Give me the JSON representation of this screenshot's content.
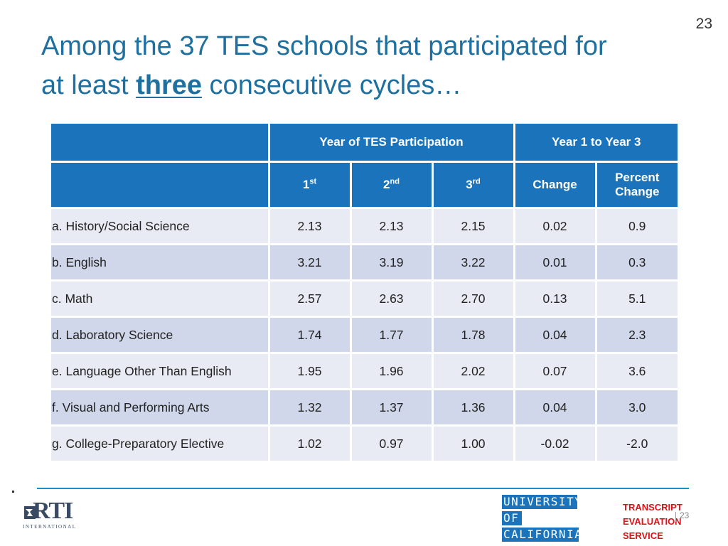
{
  "page_number": "23",
  "title": {
    "line1": "Among the 37 TES schools that participated for",
    "line2_pre": "at least ",
    "line2_emph": "three",
    "line2_post": " consecutive cycles…"
  },
  "table": {
    "group_headers": {
      "participation": "Year of TES Participation",
      "comparison": "Year 1 to Year 3"
    },
    "columns": [
      {
        "base": "1",
        "sup": "st"
      },
      {
        "base": "2",
        "sup": "nd"
      },
      {
        "base": "3",
        "sup": "rd"
      }
    ],
    "change_label": "Change",
    "percent_change_label_1": "Percent",
    "percent_change_label_2": "Change",
    "rows": [
      {
        "label": "a. History/Social Science",
        "y1": "2.13",
        "y2": "2.13",
        "y3": "2.15",
        "change": "0.02",
        "pct": "0.9"
      },
      {
        "label": "b. English",
        "y1": "3.21",
        "y2": "3.19",
        "y3": "3.22",
        "change": "0.01",
        "pct": "0.3"
      },
      {
        "label": "c. Math",
        "y1": "2.57",
        "y2": "2.63",
        "y3": "2.70",
        "change": "0.13",
        "pct": "5.1"
      },
      {
        "label": "d. Laboratory Science",
        "y1": "1.74",
        "y2": "1.77",
        "y3": "1.78",
        "change": "0.04",
        "pct": "2.3"
      },
      {
        "label": "e. Language Other Than English",
        "y1": "1.95",
        "y2": "1.96",
        "y3": "2.02",
        "change": "0.07",
        "pct": "3.6"
      },
      {
        "label": "f. Visual and Performing Arts",
        "y1": "1.32",
        "y2": "1.37",
        "y3": "1.36",
        "change": "0.04",
        "pct": "3.0"
      },
      {
        "label": "g. College-Preparatory Elective",
        "y1": "1.02",
        "y2": "0.97",
        "y3": "1.00",
        "change": "-0.02",
        "pct": "-2.0"
      }
    ]
  },
  "footer": {
    "rti_logo": "RTI",
    "rti_subtext": "INTERNATIONAL",
    "uc_line1": "UNIVERSITY",
    "uc_line2": "OF",
    "uc_line3": "CALIFORNIA",
    "tes_line1": "TRANSCRIPT",
    "tes_line2": "EVALUATION",
    "tes_line3": "SERVICE",
    "small_page_number": "23"
  },
  "colors": {
    "title": "#1f6f9f",
    "header_bg": "#1b74bb",
    "row_light": "#e9ebf4",
    "row_dark": "#d1d7ea",
    "tes_red": "#e0101a"
  }
}
